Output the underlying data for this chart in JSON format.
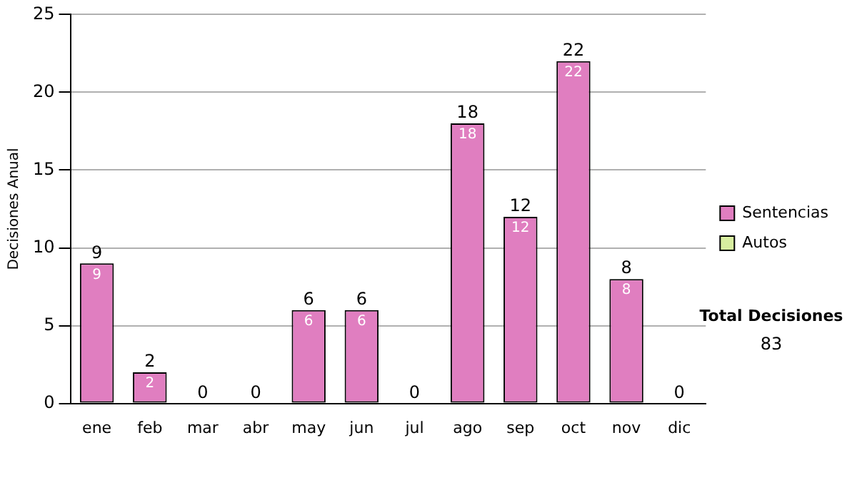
{
  "chart_data": {
    "type": "bar",
    "stacked": true,
    "ylabel": "Decisiones Anual",
    "categories": [
      "ene",
      "feb",
      "mar",
      "abr",
      "may",
      "jun",
      "jul",
      "ago",
      "sep",
      "oct",
      "nov",
      "dic"
    ],
    "series": [
      {
        "name": "Sentencias",
        "color": "#e07ec0",
        "values": [
          9,
          2,
          0,
          0,
          6,
          6,
          0,
          18,
          12,
          22,
          8,
          0
        ],
        "value_labels": [
          "9",
          "2",
          null,
          null,
          "6",
          "6",
          null,
          "18",
          "12",
          "22",
          "8",
          null
        ]
      },
      {
        "name": "Autos",
        "color": "#d8eea0",
        "values": [
          0,
          0,
          0,
          0,
          0,
          0,
          0,
          0,
          0,
          0,
          0,
          0
        ]
      }
    ],
    "totals": [
      "9",
      "2",
      "0",
      "0",
      "6",
      "6",
      "0",
      "18",
      "12",
      "22",
      "8",
      "0"
    ],
    "ylim": [
      0,
      25
    ],
    "yticks": [
      0,
      5,
      10,
      15,
      20,
      25
    ],
    "grid": "y",
    "legend": "right",
    "annotations": [
      "Total Decisiones",
      "83"
    ]
  }
}
